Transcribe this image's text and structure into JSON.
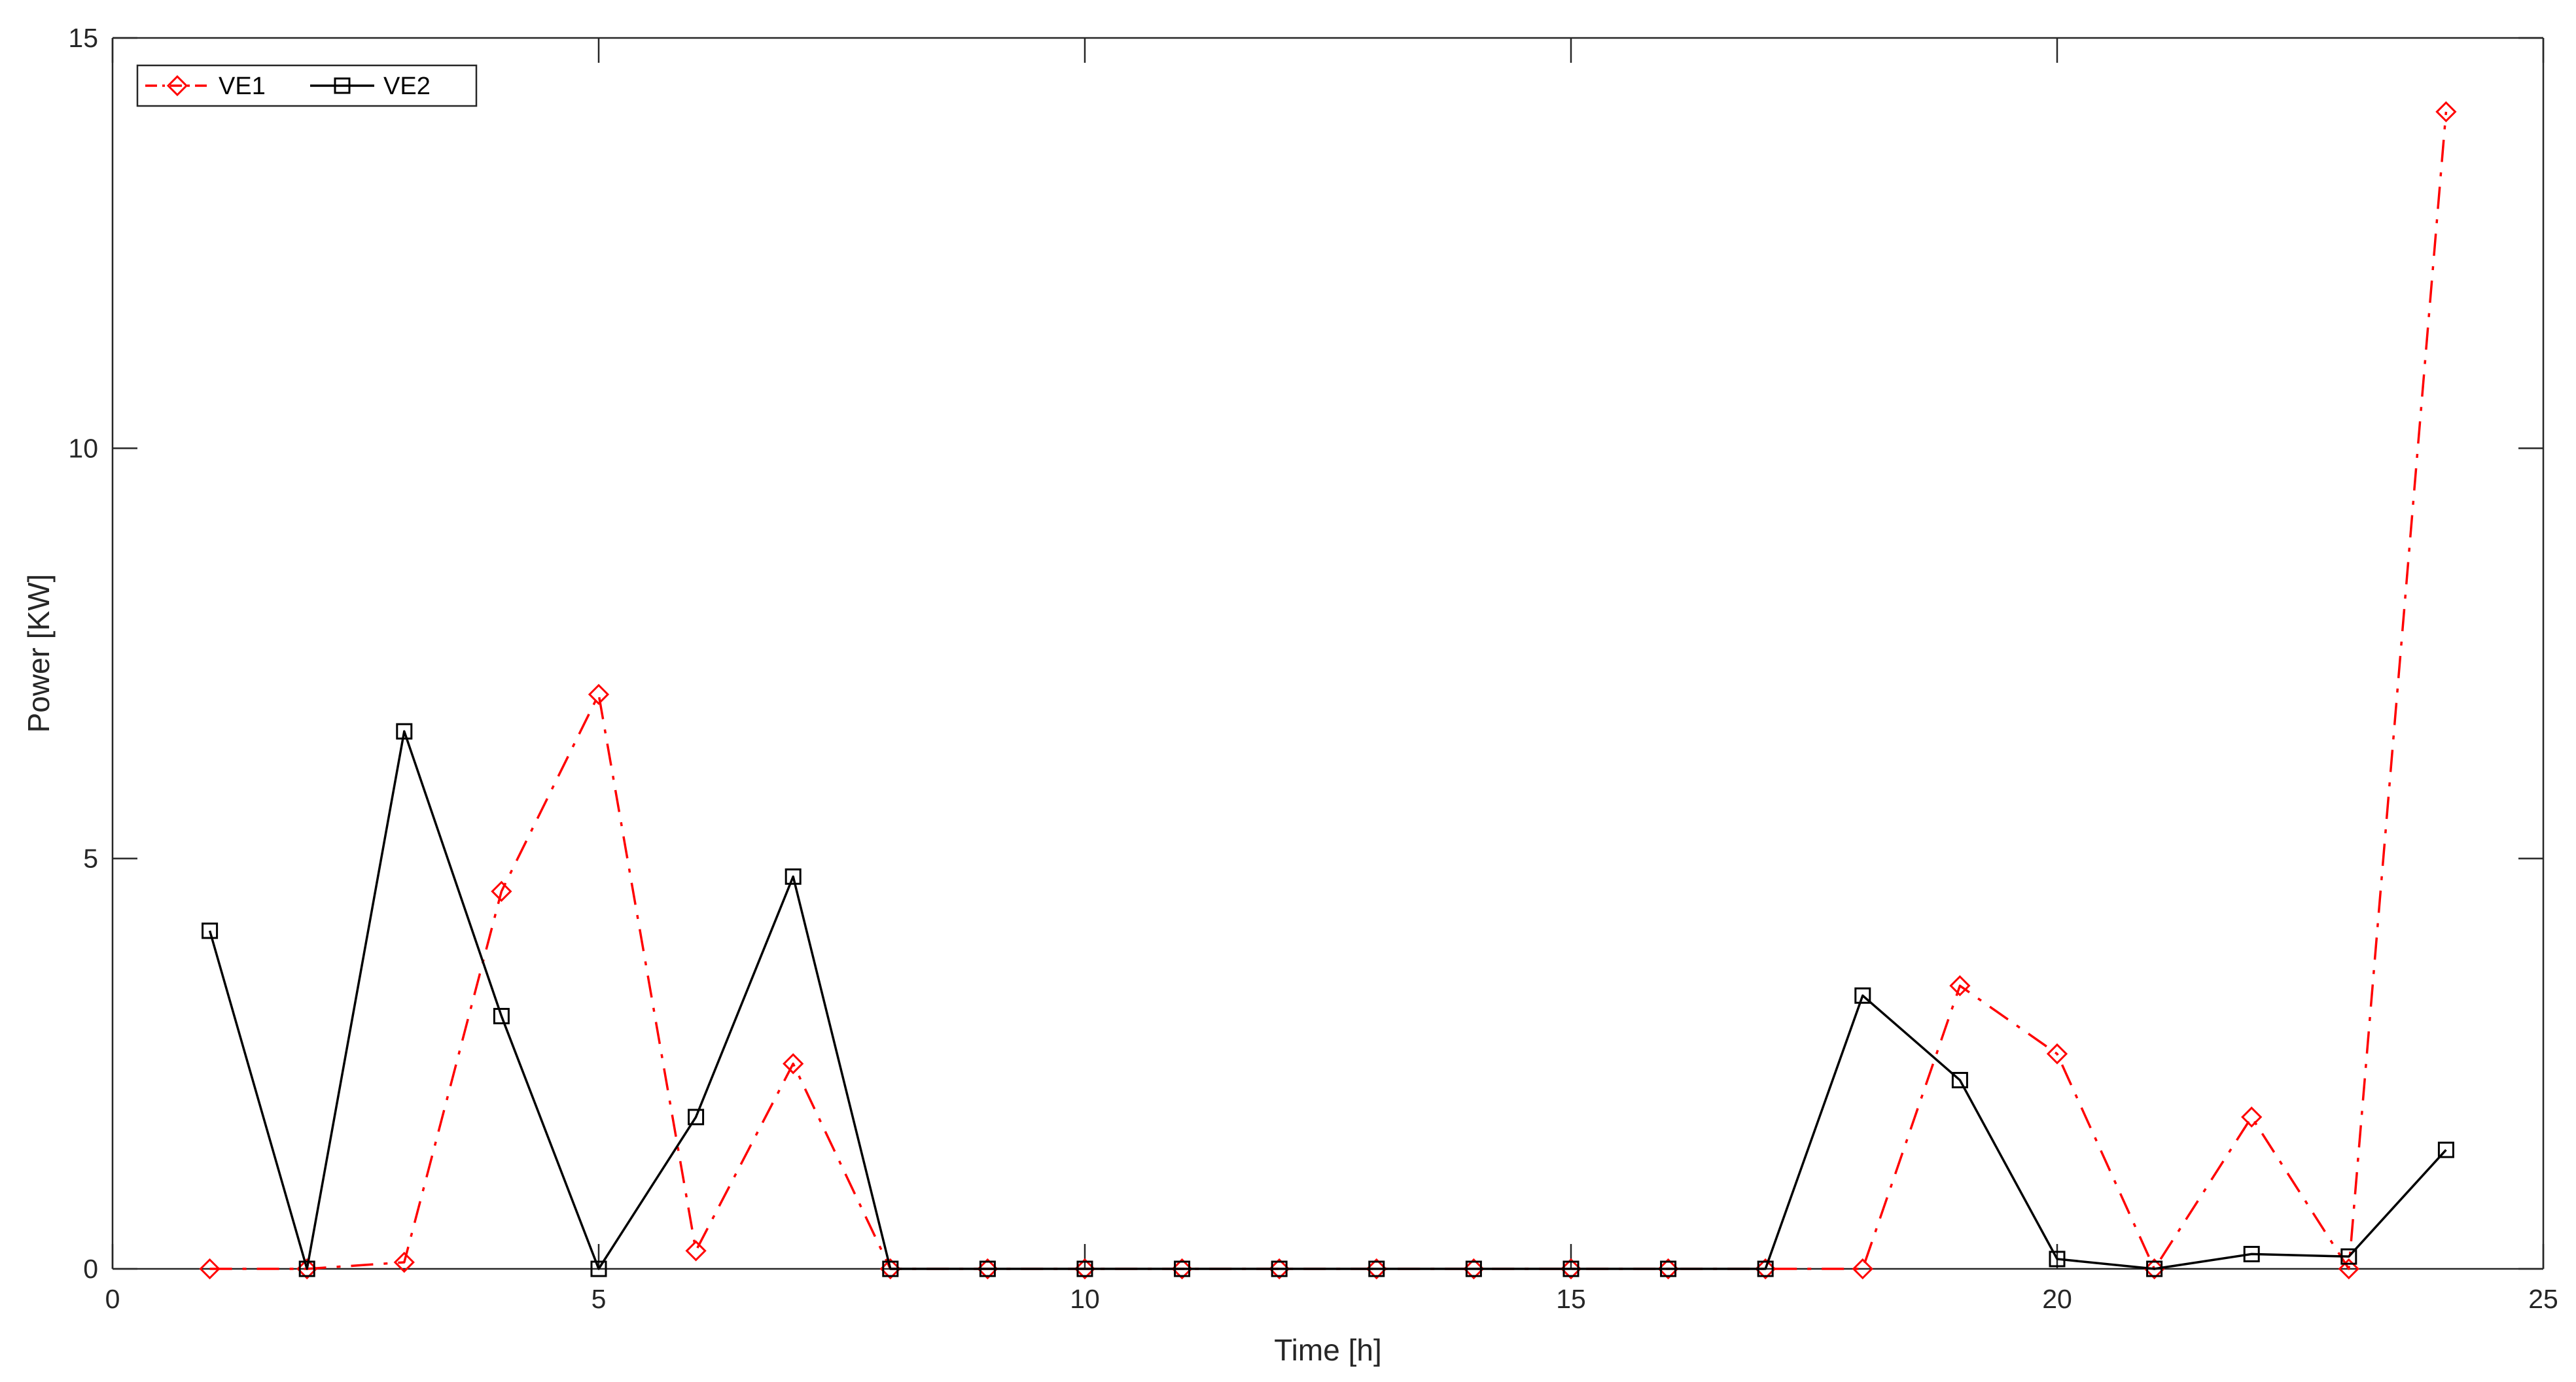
{
  "chart_data": {
    "type": "line",
    "xlabel": "Time [h]",
    "ylabel": "Power [KW]",
    "xlim": [
      0,
      25
    ],
    "ylim": [
      0,
      15
    ],
    "xticks": [
      0,
      5,
      10,
      15,
      20,
      25
    ],
    "yticks": [
      0,
      5,
      10,
      15
    ],
    "x": [
      1,
      2,
      3,
      4,
      5,
      6,
      7,
      8,
      9,
      10,
      11,
      12,
      13,
      14,
      15,
      16,
      17,
      18,
      19,
      20,
      21,
      22,
      23,
      24
    ],
    "grid": false,
    "legend_position": "top-left",
    "series": [
      {
        "name": "VE1",
        "color": "#ff0000",
        "line_style": "dash-dot",
        "marker": "diamond",
        "values": [
          0,
          0,
          0.08,
          4.6,
          7.0,
          0.22,
          2.5,
          0,
          0,
          0,
          0,
          0,
          0,
          0,
          0,
          0,
          0,
          0,
          3.45,
          2.62,
          0,
          1.85,
          0,
          14.1
        ]
      },
      {
        "name": "VE2",
        "color": "#000000",
        "line_style": "solid",
        "marker": "square",
        "values": [
          4.12,
          0,
          6.55,
          3.08,
          0,
          1.85,
          4.78,
          0,
          0,
          0,
          0,
          0,
          0,
          0,
          0,
          0,
          0,
          3.33,
          2.3,
          0.12,
          0,
          0.18,
          0.15,
          1.45
        ]
      }
    ]
  }
}
